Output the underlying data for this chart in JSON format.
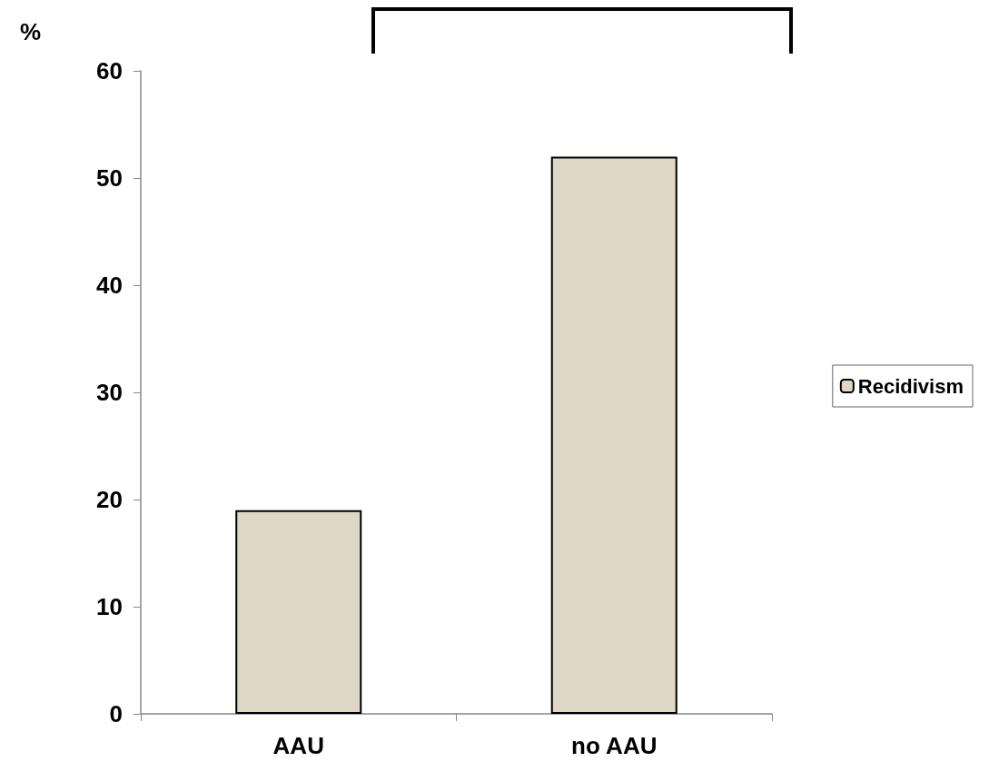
{
  "chart_data": {
    "type": "bar",
    "ylabel": "%",
    "categories": [
      "AAU",
      "no AAU"
    ],
    "series": [
      {
        "name": "Recidivism",
        "color": "#ddd8c4",
        "values": [
          19,
          52
        ]
      }
    ],
    "ylim": [
      0,
      60
    ],
    "yticks": [
      0,
      10,
      20,
      30,
      40,
      50,
      60
    ],
    "grid": false,
    "legend": "right"
  }
}
